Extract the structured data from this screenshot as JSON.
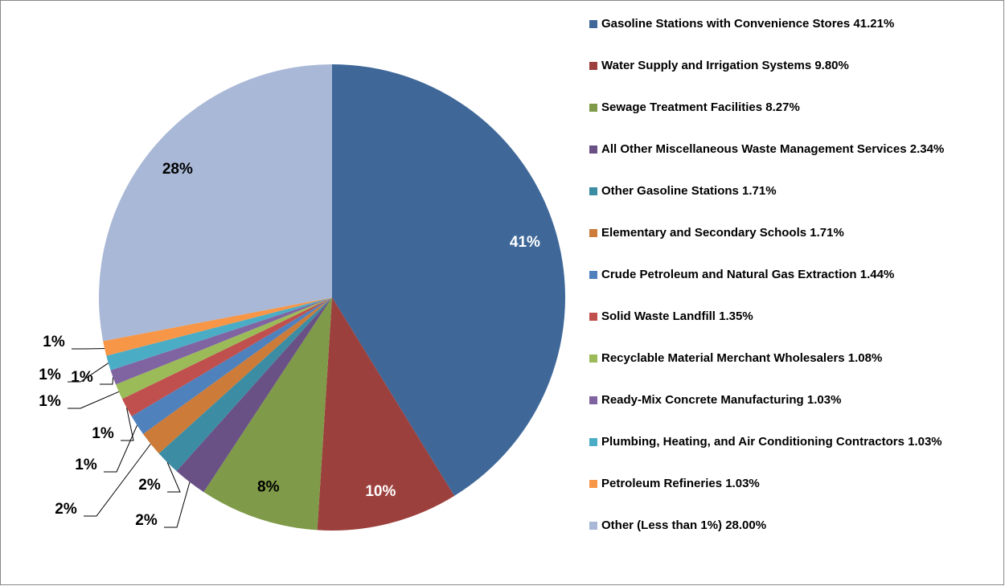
{
  "chart_data": {
    "type": "pie",
    "categories": [
      "Gasoline Stations with Convenience Stores 41.21%",
      "Water Supply and Irrigation Systems 9.80%",
      "Sewage Treatment Facilities 8.27%",
      "All Other Miscellaneous Waste Management Services 2.34%",
      "Other Gasoline Stations 1.71%",
      "Elementary and Secondary Schools 1.71%",
      "Crude Petroleum and Natural Gas Extraction 1.44%",
      "Solid Waste Landfill 1.35%",
      "Recyclable Material Merchant Wholesalers 1.08%",
      "Ready-Mix Concrete Manufacturing 1.03%",
      "Plumbing, Heating, and Air Conditioning Contractors 1.03%",
      "Petroleum Refineries 1.03%",
      "Other (Less than 1%) 28.00%"
    ],
    "values": [
      41.21,
      9.8,
      8.27,
      2.34,
      1.71,
      1.71,
      1.44,
      1.35,
      1.08,
      1.03,
      1.03,
      1.03,
      28.0
    ],
    "value_labels": [
      "41%",
      "10%",
      "8%",
      "2%",
      "2%",
      "2%",
      "1%",
      "1%",
      "1%",
      "1%",
      "1%",
      "1%",
      "28%"
    ],
    "colors": [
      "#3F6899",
      "#9C403D",
      "#7F9A48",
      "#695185",
      "#3C8DA3",
      "#CC7B38",
      "#4F81BD",
      "#C0504D",
      "#9BBB59",
      "#8064A2",
      "#4BACC6",
      "#F79646",
      "#A9B8D6"
    ],
    "legend": "right"
  }
}
